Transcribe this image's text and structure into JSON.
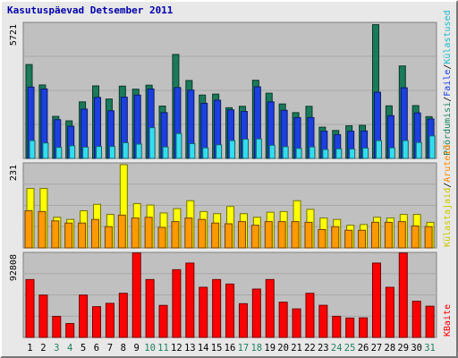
{
  "title": "Kasutuspäevad Detsember 2011",
  "chart_data": [
    {
      "type": "bar",
      "panel": "top",
      "ymax_label": "5721",
      "ylim": [
        0,
        5721
      ],
      "categories": [
        "1",
        "2",
        "3",
        "4",
        "5",
        "6",
        "7",
        "8",
        "9",
        "10",
        "11",
        "12",
        "13",
        "14",
        "15",
        "16",
        "17",
        "18",
        "19",
        "20",
        "21",
        "22",
        "23",
        "24",
        "25",
        "26",
        "27",
        "28",
        "29",
        "30",
        "31"
      ],
      "series": [
        {
          "name": "Pöördumisi",
          "color": "#1a7a5a",
          "values": [
            4000,
            3130,
            1790,
            1600,
            2410,
            3090,
            2530,
            3080,
            2950,
            3120,
            2230,
            4430,
            3320,
            2700,
            2740,
            2160,
            2220,
            3330,
            2780,
            2320,
            1950,
            2220,
            1330,
            1190,
            1390,
            1410,
            5700,
            2240,
            3940,
            2250,
            1780
          ]
        },
        {
          "name": "Faile",
          "color": "#1c3fe0",
          "values": [
            3040,
            2960,
            1650,
            1370,
            2100,
            2600,
            2030,
            2610,
            2700,
            2960,
            1950,
            3020,
            2910,
            2350,
            2480,
            2070,
            2000,
            3050,
            2410,
            2050,
            1740,
            1740,
            1160,
            1010,
            1160,
            1170,
            2820,
            1820,
            3010,
            1940,
            1680
          ]
        },
        {
          "name": "Külastused",
          "color": "#33ddee",
          "values": [
            760,
            660,
            470,
            540,
            480,
            510,
            510,
            670,
            610,
            1310,
            490,
            1060,
            630,
            450,
            580,
            760,
            820,
            830,
            560,
            500,
            430,
            490,
            380,
            410,
            400,
            440,
            760,
            450,
            760,
            680,
            960
          ]
        }
      ]
    },
    {
      "type": "bar",
      "panel": "middle",
      "ymax_label": "231",
      "ylim": [
        0,
        231
      ],
      "categories": [
        "1",
        "2",
        "3",
        "4",
        "5",
        "6",
        "7",
        "8",
        "9",
        "10",
        "11",
        "12",
        "13",
        "14",
        "15",
        "16",
        "17",
        "18",
        "19",
        "20",
        "21",
        "22",
        "23",
        "24",
        "25",
        "26",
        "27",
        "28",
        "29",
        "30",
        "31"
      ],
      "series": [
        {
          "name": "Külastajaid",
          "color": "#ffff00",
          "values": [
            165,
            165,
            85,
            79,
            103,
            121,
            93,
            231,
            123,
            119,
            97,
            109,
            131,
            101,
            95,
            115,
            95,
            85,
            99,
            101,
            131,
            107,
            83,
            79,
            63,
            65,
            85,
            83,
            93,
            93,
            71
          ]
        },
        {
          "name": "Aruteid",
          "color": "#ff9900",
          "values": [
            103,
            101,
            75,
            69,
            69,
            79,
            59,
            91,
            83,
            85,
            57,
            73,
            83,
            79,
            69,
            67,
            73,
            63,
            73,
            73,
            73,
            71,
            51,
            59,
            49,
            49,
            71,
            71,
            73,
            61,
            59
          ]
        }
      ]
    },
    {
      "type": "bar",
      "panel": "bottom",
      "ymax_label": "92808",
      "ylim": [
        0,
        92808
      ],
      "categories": [
        "1",
        "2",
        "3",
        "4",
        "5",
        "6",
        "7",
        "8",
        "9",
        "10",
        "11",
        "12",
        "13",
        "14",
        "15",
        "16",
        "17",
        "18",
        "19",
        "20",
        "21",
        "22",
        "23",
        "24",
        "25",
        "26",
        "27",
        "28",
        "29",
        "30",
        "31"
      ],
      "series": [
        {
          "name": "KBaite",
          "color": "#ff0000",
          "values": [
            64500,
            47200,
            23400,
            15500,
            47200,
            34300,
            38000,
            49200,
            94100,
            64500,
            35700,
            75500,
            82900,
            55900,
            64500,
            59500,
            37600,
            53900,
            64500,
            39300,
            31800,
            49200,
            35800,
            23500,
            21600,
            21800,
            82900,
            55900,
            94100,
            40400,
            34800
          ]
        }
      ]
    }
  ],
  "x_labels": [
    {
      "text": "1",
      "color": "#000000"
    },
    {
      "text": "2",
      "color": "#000000"
    },
    {
      "text": "3",
      "color": "#208060"
    },
    {
      "text": "4",
      "color": "#208060"
    },
    {
      "text": "5",
      "color": "#000000"
    },
    {
      "text": "6",
      "color": "#000000"
    },
    {
      "text": "7",
      "color": "#000000"
    },
    {
      "text": "8",
      "color": "#000000"
    },
    {
      "text": "9",
      "color": "#000000"
    },
    {
      "text": "10",
      "color": "#208060"
    },
    {
      "text": "11",
      "color": "#208060"
    },
    {
      "text": "12",
      "color": "#000000"
    },
    {
      "text": "13",
      "color": "#000000"
    },
    {
      "text": "14",
      "color": "#000000"
    },
    {
      "text": "15",
      "color": "#000000"
    },
    {
      "text": "16",
      "color": "#000000"
    },
    {
      "text": "17",
      "color": "#208060"
    },
    {
      "text": "18",
      "color": "#208060"
    },
    {
      "text": "19",
      "color": "#000000"
    },
    {
      "text": "20",
      "color": "#000000"
    },
    {
      "text": "21",
      "color": "#000000"
    },
    {
      "text": "22",
      "color": "#000000"
    },
    {
      "text": "23",
      "color": "#000000"
    },
    {
      "text": "24",
      "color": "#208060"
    },
    {
      "text": "25",
      "color": "#208060"
    },
    {
      "text": "26",
      "color": "#000000"
    },
    {
      "text": "27",
      "color": "#000000"
    },
    {
      "text": "28",
      "color": "#000000"
    },
    {
      "text": "29",
      "color": "#000000"
    },
    {
      "text": "30",
      "color": "#000000"
    },
    {
      "text": "31",
      "color": "#208060"
    }
  ],
  "legend": {
    "top": [
      {
        "text": "Pöördumisi",
        "color": "#208060"
      },
      {
        "text": "Faile",
        "color": "#2040e0"
      },
      {
        "text": "Külastused",
        "color": "#20b8c8"
      }
    ],
    "middle": [
      {
        "text": "Külastajaid",
        "color": "#c8c800"
      },
      {
        "text": "Aruteid",
        "color": "#ff8800"
      }
    ],
    "bottom": [
      {
        "text": "KBaite",
        "color": "#ff0000"
      }
    ]
  }
}
